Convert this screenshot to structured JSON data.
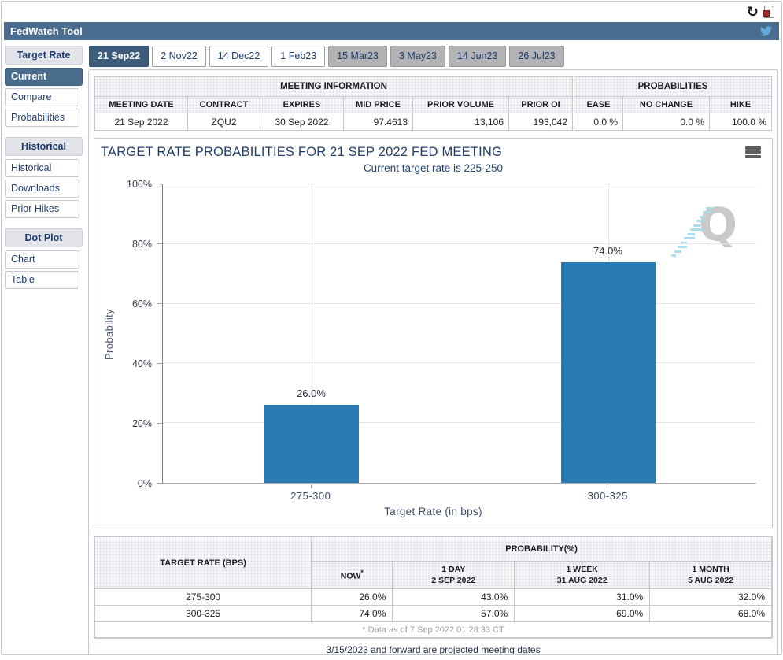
{
  "app": {
    "title": "FedWatch Tool"
  },
  "top_bar": {
    "refresh_glyph": "↻"
  },
  "icons": {
    "refresh": "refresh-icon",
    "export_report": "export-report-icon",
    "twitter": "twitter-icon",
    "chart_menu": "chart-menu-icon",
    "watermark": "quikstrike-watermark"
  },
  "colors": {
    "header_bg": "#4a6d8f",
    "selected_bg": "#3d5c7c",
    "bar_blue": "#2a7ab5",
    "now_highlight": "#fbfbda"
  },
  "sidebar": {
    "sections": [
      {
        "header": "Target Rate",
        "items": [
          {
            "label": "Current",
            "selected": true
          },
          {
            "label": "Compare",
            "selected": false
          },
          {
            "label": "Probabilities",
            "selected": false
          }
        ]
      },
      {
        "header": "Historical",
        "items": [
          {
            "label": "Historical",
            "selected": false
          },
          {
            "label": "Downloads",
            "selected": false
          },
          {
            "label": "Prior Hikes",
            "selected": false
          }
        ]
      },
      {
        "header": "Dot Plot",
        "items": [
          {
            "label": "Chart",
            "selected": false
          },
          {
            "label": "Table",
            "selected": false
          }
        ]
      }
    ]
  },
  "tabs": [
    {
      "label": "21 Sep22",
      "state": "selected"
    },
    {
      "label": "2 Nov22",
      "state": "normal"
    },
    {
      "label": "14 Dec22",
      "state": "normal"
    },
    {
      "label": "1 Feb23",
      "state": "normal"
    },
    {
      "label": "15 Mar23",
      "state": "projected"
    },
    {
      "label": "3 May23",
      "state": "projected"
    },
    {
      "label": "14 Jun23",
      "state": "projected"
    },
    {
      "label": "26 Jul23",
      "state": "projected"
    }
  ],
  "meeting_info": {
    "title": "MEETING INFORMATION",
    "columns": [
      "MEETING DATE",
      "CONTRACT",
      "EXPIRES",
      "MID PRICE",
      "PRIOR VOLUME",
      "PRIOR OI"
    ],
    "row": {
      "meeting_date": "21 Sep 2022",
      "contract": "ZQU2",
      "expires": "30 Sep 2022",
      "mid_price": "97.4613",
      "prior_volume": "13,106",
      "prior_oi": "193,042"
    }
  },
  "probabilities_summary": {
    "title": "PROBABILITIES",
    "columns": [
      "EASE",
      "NO CHANGE",
      "HIKE"
    ],
    "row": {
      "ease": "0.0 %",
      "no_change": "0.0 %",
      "hike": "100.0 %"
    }
  },
  "chart_data": {
    "type": "bar",
    "title": "TARGET RATE PROBABILITIES FOR 21 SEP 2022 FED MEETING",
    "subtitle": "Current target rate is 225-250",
    "categories": [
      "275-300",
      "300-325"
    ],
    "values": [
      26.0,
      74.0
    ],
    "value_labels": [
      "26.0%",
      "74.0%"
    ],
    "xlabel": "Target Rate (in bps)",
    "ylabel": "Probability",
    "ylim": [
      0,
      100
    ],
    "yticks": [
      "0%",
      "20%",
      "40%",
      "60%",
      "80%",
      "100%"
    ],
    "bar_color": "#2a7ab5",
    "grid": true,
    "legend": "none",
    "watermark_letter": "Q"
  },
  "probability_table": {
    "row_header": "TARGET RATE (BPS)",
    "group_header": "PROBABILITY(%)",
    "columns": [
      {
        "line1": "NOW",
        "sup": "*",
        "line2": ""
      },
      {
        "line1": "1 DAY",
        "sup": "",
        "line2": "2 SEP 2022"
      },
      {
        "line1": "1 WEEK",
        "sup": "",
        "line2": "31 AUG 2022"
      },
      {
        "line1": "1 MONTH",
        "sup": "",
        "line2": "5 AUG 2022"
      }
    ],
    "rows": [
      {
        "target_rate": "275-300",
        "now": "26.0%",
        "day": "43.0%",
        "week": "31.0%",
        "month": "32.0%"
      },
      {
        "target_rate": "300-325",
        "now": "74.0%",
        "day": "57.0%",
        "week": "69.0%",
        "month": "68.0%"
      }
    ],
    "footnote": "* Data as of 7 Sep 2022 01:28:33 CT"
  },
  "footer": {
    "note": "3/15/2023 and forward are projected meeting dates"
  }
}
